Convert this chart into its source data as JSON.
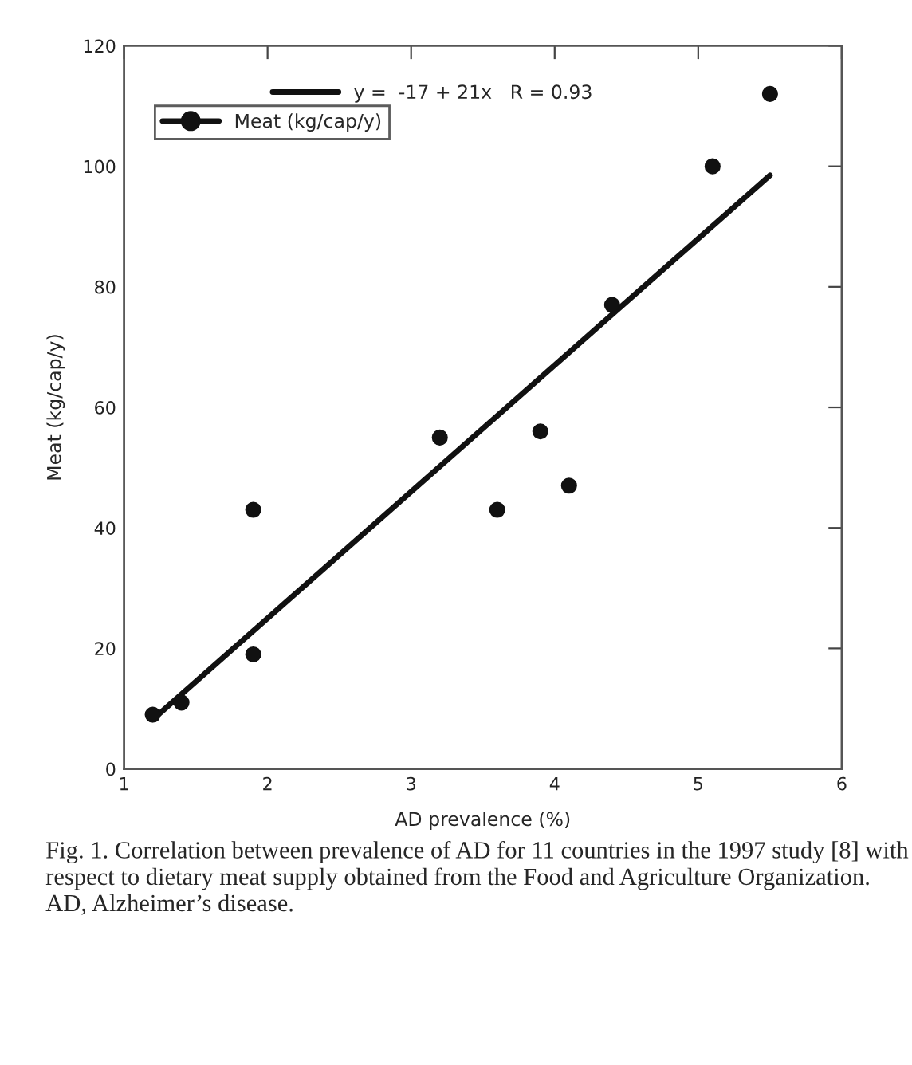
{
  "chart_data": {
    "type": "scatter",
    "xlabel": "AD prevalence (%)",
    "ylabel": "Meat (kg/cap/y)",
    "series": [
      {
        "name": "Meat (kg/cap/y)",
        "color": "#111111",
        "marker": "circle",
        "x": [
          1.2,
          1.4,
          1.9,
          1.9,
          3.2,
          3.6,
          3.9,
          4.1,
          4.4,
          5.1,
          5.5
        ],
        "values": [
          9,
          11,
          19,
          43,
          55,
          43,
          56,
          47,
          77,
          100,
          112
        ]
      },
      {
        "name": "y =  -17 + 21x   R = 0.93",
        "type": "line",
        "color": "#111111",
        "line_style": "solid",
        "x": [
          1.2,
          5.5
        ],
        "values": [
          8.2,
          98.5
        ]
      }
    ],
    "xlim": [
      1,
      6
    ],
    "xticks": [
      1,
      2,
      3,
      4,
      5,
      6
    ],
    "ylim": [
      0,
      120
    ],
    "yticks": [
      0,
      20,
      40,
      60,
      80,
      100,
      120
    ],
    "legend": "top left",
    "grid": false,
    "annotations": [
      "Fig. 1. Correlation between prevalence of AD for 11 countries in the 1997 study [8] with respect to dietary meat supply obtained from the Food and Agriculture Organization. AD, Alzheimer’s disease."
    ]
  }
}
